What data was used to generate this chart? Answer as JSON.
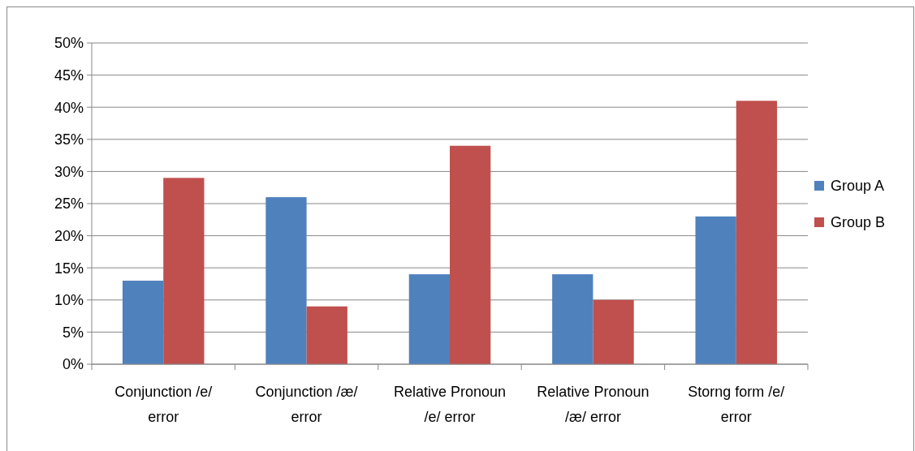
{
  "chart_data": {
    "type": "bar",
    "categories": [
      "Conjunction /e/ error",
      "Conjunction /æ/ error",
      "Relative Pronoun /e/ error",
      "Relative Pronoun /æ/ error",
      "Storng form /e/ error"
    ],
    "series": [
      {
        "name": "Group A",
        "color": "#4f81bd",
        "values": [
          13,
          26,
          14,
          14,
          23
        ]
      },
      {
        "name": "Group B",
        "color": "#c0504d",
        "values": [
          29,
          9,
          34,
          10,
          41
        ]
      }
    ],
    "ylim": [
      0,
      50
    ],
    "yticks": [
      {
        "value": 0,
        "label": "0%"
      },
      {
        "value": 5,
        "label": "5%"
      },
      {
        "value": 10,
        "label": "10%"
      },
      {
        "value": 15,
        "label": "15%"
      },
      {
        "value": 20,
        "label": "20%"
      },
      {
        "value": 25,
        "label": "25%"
      },
      {
        "value": 30,
        "label": "30%"
      },
      {
        "value": 35,
        "label": "35%"
      },
      {
        "value": 40,
        "label": "40%"
      },
      {
        "value": 45,
        "label": "45%"
      },
      {
        "value": 50,
        "label": "50%"
      }
    ],
    "grid": "y",
    "legend": "right"
  }
}
